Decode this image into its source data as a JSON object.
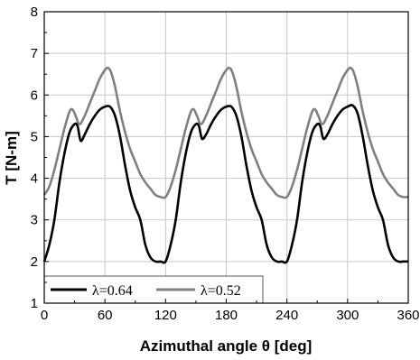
{
  "chart_data": {
    "type": "line",
    "xlabel": "Azimuthal angle θ [deg]",
    "ylabel": "T [N-m]",
    "xlim": [
      0,
      360
    ],
    "ylim": [
      1,
      8
    ],
    "xticks": [
      0,
      60,
      120,
      180,
      240,
      300,
      360
    ],
    "yticks": [
      1,
      2,
      3,
      4,
      5,
      6,
      7,
      8
    ],
    "grid": true,
    "legend_position": "bottom",
    "series": [
      {
        "name": "λ=0.64",
        "color": "#000000",
        "x": [
          0,
          5,
          10,
          15,
          20,
          25,
          30,
          33,
          36,
          40,
          45,
          50,
          55,
          60,
          65,
          70,
          75,
          80,
          85,
          90,
          95,
          100,
          105,
          110,
          115,
          120,
          125,
          130,
          135,
          140,
          145,
          150,
          153,
          156,
          160,
          165,
          170,
          175,
          180,
          185,
          190,
          195,
          200,
          205,
          210,
          215,
          220,
          225,
          230,
          235,
          240,
          245,
          250,
          255,
          260,
          265,
          270,
          273,
          276,
          280,
          285,
          290,
          295,
          300,
          305,
          310,
          315,
          320,
          325,
          330,
          335,
          340,
          345,
          350,
          355,
          360
        ],
        "values": [
          2.0,
          2.4,
          3.0,
          3.9,
          4.6,
          5.1,
          5.3,
          5.25,
          4.9,
          5.05,
          5.3,
          5.5,
          5.65,
          5.72,
          5.72,
          5.5,
          5.0,
          4.3,
          3.7,
          3.3,
          3.0,
          2.4,
          2.1,
          2.0,
          2.0,
          2.0,
          2.4,
          3.0,
          3.9,
          4.6,
          5.1,
          5.3,
          5.25,
          4.95,
          5.05,
          5.3,
          5.5,
          5.65,
          5.72,
          5.72,
          5.5,
          5.0,
          4.3,
          3.7,
          3.3,
          3.0,
          2.4,
          2.1,
          2.0,
          2.0,
          2.0,
          2.4,
          3.0,
          3.9,
          4.6,
          5.1,
          5.3,
          5.25,
          4.95,
          5.05,
          5.3,
          5.5,
          5.65,
          5.72,
          5.75,
          5.55,
          5.0,
          4.3,
          3.7,
          3.3,
          3.0,
          2.4,
          2.1,
          2.0,
          2.0,
          2.0
        ]
      },
      {
        "name": "λ=0.52",
        "color": "#808080",
        "x": [
          0,
          5,
          10,
          15,
          20,
          25,
          28,
          31,
          35,
          40,
          45,
          50,
          55,
          60,
          63,
          66,
          70,
          75,
          80,
          85,
          90,
          95,
          100,
          105,
          110,
          115,
          120,
          125,
          130,
          135,
          140,
          145,
          148,
          151,
          155,
          160,
          165,
          170,
          175,
          180,
          183,
          186,
          190,
          195,
          200,
          205,
          210,
          215,
          220,
          225,
          230,
          235,
          240,
          245,
          250,
          255,
          260,
          265,
          268,
          271,
          275,
          280,
          285,
          290,
          295,
          300,
          303,
          306,
          310,
          315,
          320,
          325,
          330,
          335,
          340,
          345,
          350,
          355,
          360
        ],
        "values": [
          3.6,
          3.8,
          4.2,
          4.7,
          5.2,
          5.6,
          5.65,
          5.5,
          5.3,
          5.5,
          5.8,
          6.1,
          6.4,
          6.6,
          6.65,
          6.55,
          6.2,
          5.6,
          5.1,
          4.7,
          4.4,
          4.1,
          3.9,
          3.75,
          3.6,
          3.55,
          3.55,
          3.8,
          4.2,
          4.7,
          5.2,
          5.6,
          5.65,
          5.5,
          5.3,
          5.5,
          5.8,
          6.1,
          6.4,
          6.6,
          6.65,
          6.55,
          6.2,
          5.6,
          5.1,
          4.7,
          4.4,
          4.1,
          3.9,
          3.75,
          3.6,
          3.55,
          3.55,
          3.8,
          4.2,
          4.7,
          5.2,
          5.6,
          5.65,
          5.5,
          5.3,
          5.5,
          5.8,
          6.1,
          6.4,
          6.6,
          6.65,
          6.55,
          6.2,
          5.6,
          5.1,
          4.7,
          4.4,
          4.1,
          3.9,
          3.75,
          3.6,
          3.55,
          3.55
        ]
      }
    ]
  }
}
